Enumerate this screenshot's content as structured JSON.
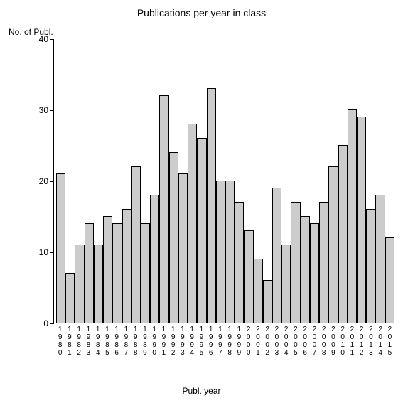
{
  "chart": {
    "type": "bar",
    "title": "Publications per year in class",
    "title_fontsize": 14,
    "y_axis_label": "No. of Publ.",
    "x_axis_label": "Publ. year",
    "label_fontsize": 12,
    "ylim": [
      0,
      40
    ],
    "ytick_step": 10,
    "yticks": [
      0,
      10,
      20,
      30,
      40
    ],
    "background_color": "#ffffff",
    "bar_fill": "#cccccc",
    "bar_border": "#000000",
    "axis_color": "#000000",
    "tick_label_fontsize": 12,
    "x_tick_label_fontsize": 10,
    "categories": [
      "1980",
      "1981",
      "1982",
      "1983",
      "1984",
      "1985",
      "1986",
      "1987",
      "1988",
      "1989",
      "1990",
      "1991",
      "1992",
      "1993",
      "1994",
      "1995",
      "1996",
      "1997",
      "1998",
      "1999",
      "2000",
      "2001",
      "2002",
      "2003",
      "2004",
      "2005",
      "2006",
      "2007",
      "2008",
      "2009",
      "2010",
      "2011",
      "2012",
      "2013",
      "2014",
      "2015"
    ],
    "values": [
      21,
      7,
      11,
      14,
      11,
      15,
      14,
      16,
      22,
      14,
      18,
      32,
      24,
      21,
      28,
      26,
      33,
      20,
      20,
      17,
      13,
      9,
      6,
      19,
      11,
      17,
      15,
      14,
      17,
      22,
      25,
      30,
      29,
      16,
      18,
      12
    ]
  }
}
